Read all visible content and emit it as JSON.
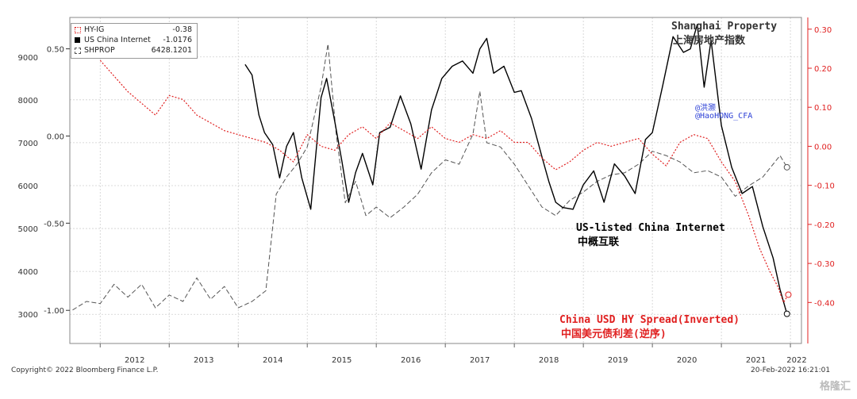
{
  "chart_data": {
    "type": "line",
    "x_ticks": [
      "2012",
      "2013",
      "2014",
      "2015",
      "2016",
      "2017",
      "2018",
      "2019",
      "2020",
      "2021",
      "2022"
    ],
    "left_axis_outer": {
      "ticks": [
        9000,
        8000,
        7000,
        6000,
        5000,
        4000,
        3000
      ],
      "ylim": [
        2320,
        9920
      ]
    },
    "left_axis_inner": {
      "ticks": [
        "0.50",
        "0.00",
        "-0.50",
        "-1.00"
      ],
      "ylim": [
        -1.19,
        0.68
      ]
    },
    "right_axis": {
      "ticks": [
        "0.30",
        "0.20",
        "0.10",
        "0.00",
        "-0.10",
        "-0.20",
        "-0.30",
        "-0.40"
      ],
      "ylim": [
        -0.505,
        0.33
      ],
      "color": "#e02020"
    },
    "grid": true,
    "series": [
      {
        "name": "SHPROP",
        "axis": "left_outer",
        "style": "dashed",
        "color": "#555555",
        "x": [
          2011.6,
          2011.8,
          2012.0,
          2012.2,
          2012.4,
          2012.6,
          2012.8,
          2013.0,
          2013.2,
          2013.4,
          2013.6,
          2013.8,
          2014.0,
          2014.2,
          2014.4,
          2014.55,
          2014.7,
          2014.85,
          2015.0,
          2015.1,
          2015.2,
          2015.3,
          2015.42,
          2015.55,
          2015.7,
          2015.85,
          2016.0,
          2016.2,
          2016.4,
          2016.6,
          2016.8,
          2017.0,
          2017.2,
          2017.4,
          2017.5,
          2017.6,
          2017.8,
          2018.0,
          2018.2,
          2018.4,
          2018.6,
          2018.8,
          2019.0,
          2019.2,
          2019.4,
          2019.6,
          2019.8,
          2020.0,
          2020.2,
          2020.4,
          2020.6,
          2020.8,
          2021.0,
          2021.2,
          2021.4,
          2021.6,
          2021.75,
          2021.85,
          2021.95
        ],
        "values": [
          3100,
          3300,
          3250,
          3700,
          3400,
          3700,
          3150,
          3450,
          3300,
          3850,
          3350,
          3650,
          3150,
          3300,
          3550,
          5800,
          6200,
          6500,
          6900,
          7600,
          8300,
          9300,
          7200,
          5600,
          6100,
          5300,
          5500,
          5250,
          5500,
          5800,
          6300,
          6600,
          6500,
          7200,
          8200,
          7000,
          6900,
          6500,
          6000,
          5500,
          5300,
          5650,
          5850,
          6100,
          6250,
          6300,
          6500,
          6800,
          6700,
          6550,
          6300,
          6350,
          6200,
          5750,
          6000,
          6200,
          6500,
          6700,
          6428
        ]
      },
      {
        "name": "US China Internet",
        "axis": "left_inner",
        "style": "solid",
        "color": "#000000",
        "x": [
          2014.1,
          2014.2,
          2014.3,
          2014.38,
          2014.5,
          2014.6,
          2014.7,
          2014.8,
          2014.92,
          2015.05,
          2015.2,
          2015.28,
          2015.4,
          2015.5,
          2015.6,
          2015.7,
          2015.8,
          2015.95,
          2016.05,
          2016.2,
          2016.35,
          2016.5,
          2016.65,
          2016.8,
          2016.95,
          2017.1,
          2017.25,
          2017.4,
          2017.5,
          2017.6,
          2017.7,
          2017.85,
          2018.0,
          2018.1,
          2018.25,
          2018.4,
          2018.5,
          2018.6,
          2018.7,
          2018.85,
          2019.0,
          2019.15,
          2019.3,
          2019.45,
          2019.6,
          2019.75,
          2019.9,
          2020.0,
          2020.15,
          2020.3,
          2020.45,
          2020.55,
          2020.65,
          2020.75,
          2020.85,
          2021.0,
          2021.15,
          2021.3,
          2021.45,
          2021.6,
          2021.75,
          2021.85,
          2021.95
        ],
        "values": [
          0.41,
          0.35,
          0.12,
          0.02,
          -0.05,
          -0.24,
          -0.06,
          0.02,
          -0.24,
          -0.42,
          0.22,
          0.33,
          0.08,
          -0.14,
          -0.38,
          -0.21,
          -0.1,
          -0.28,
          0.02,
          0.05,
          0.23,
          0.07,
          -0.19,
          0.15,
          0.33,
          0.4,
          0.43,
          0.36,
          0.5,
          0.56,
          0.36,
          0.4,
          0.25,
          0.26,
          0.1,
          -0.12,
          -0.26,
          -0.38,
          -0.41,
          -0.42,
          -0.28,
          -0.2,
          -0.38,
          -0.16,
          -0.23,
          -0.33,
          -0.02,
          0.02,
          0.29,
          0.57,
          0.48,
          0.5,
          0.64,
          0.28,
          0.55,
          0.06,
          -0.18,
          -0.33,
          -0.29,
          -0.52,
          -0.7,
          -0.88,
          -1.02
        ]
      },
      {
        "name": "HY-IG",
        "axis": "right",
        "style": "dotted",
        "color": "#e02020",
        "x": [
          2012.0,
          2012.2,
          2012.4,
          2012.6,
          2012.8,
          2013.0,
          2013.2,
          2013.4,
          2013.6,
          2013.8,
          2014.0,
          2014.2,
          2014.4,
          2014.6,
          2014.8,
          2015.0,
          2015.2,
          2015.4,
          2015.6,
          2015.8,
          2016.0,
          2016.2,
          2016.4,
          2016.6,
          2016.8,
          2017.0,
          2017.2,
          2017.4,
          2017.6,
          2017.8,
          2018.0,
          2018.2,
          2018.4,
          2018.6,
          2018.8,
          2019.0,
          2019.2,
          2019.4,
          2019.6,
          2019.8,
          2020.0,
          2020.2,
          2020.4,
          2020.6,
          2020.8,
          2021.0,
          2021.2,
          2021.4,
          2021.55,
          2021.7,
          2021.82,
          2021.9,
          2021.97
        ],
        "values": [
          0.22,
          0.18,
          0.14,
          0.11,
          0.08,
          0.13,
          0.12,
          0.08,
          0.06,
          0.04,
          0.03,
          0.02,
          0.01,
          -0.01,
          -0.04,
          0.03,
          0.0,
          -0.01,
          0.03,
          0.05,
          0.02,
          0.06,
          0.04,
          0.02,
          0.05,
          0.02,
          0.01,
          0.03,
          0.02,
          0.04,
          0.01,
          0.01,
          -0.03,
          -0.06,
          -0.04,
          -0.01,
          0.01,
          0.0,
          0.01,
          0.02,
          -0.02,
          -0.05,
          0.01,
          0.03,
          0.02,
          -0.04,
          -0.09,
          -0.18,
          -0.26,
          -0.32,
          -0.36,
          -0.4,
          -0.38
        ]
      }
    ],
    "annotations": [
      {
        "text": "Shanghai Property",
        "color": "#333333"
      },
      {
        "text": "上海房地产指数",
        "color": "#333333"
      },
      {
        "text": "US-listed China Internet",
        "color": "#000000"
      },
      {
        "text": "中概互联",
        "color": "#000000"
      },
      {
        "text": "China USD HY Spread(Inverted)",
        "color": "#e02020"
      },
      {
        "text": "中国美元债利差(逆序)",
        "color": "#e02020"
      }
    ]
  },
  "legend": {
    "items": [
      {
        "name": "HY-IG",
        "value": "-0.38",
        "swatch": "#e02020",
        "style": "dotted"
      },
      {
        "name": "US China Internet",
        "value": "-1.0176",
        "swatch": "#000000",
        "style": "solid"
      },
      {
        "name": "SHPROP",
        "value": "6428.1201",
        "swatch": "#555555",
        "style": "dashed"
      }
    ]
  },
  "labels": {
    "handle_cn": "@洪灏",
    "handle_en": "@HaoHONG_CFA",
    "copyright": "Copyright© 2022 Bloomberg Finance L.P.",
    "timestamp": "20-Feb-2022 16:21:01",
    "watermark": "格隆汇"
  }
}
